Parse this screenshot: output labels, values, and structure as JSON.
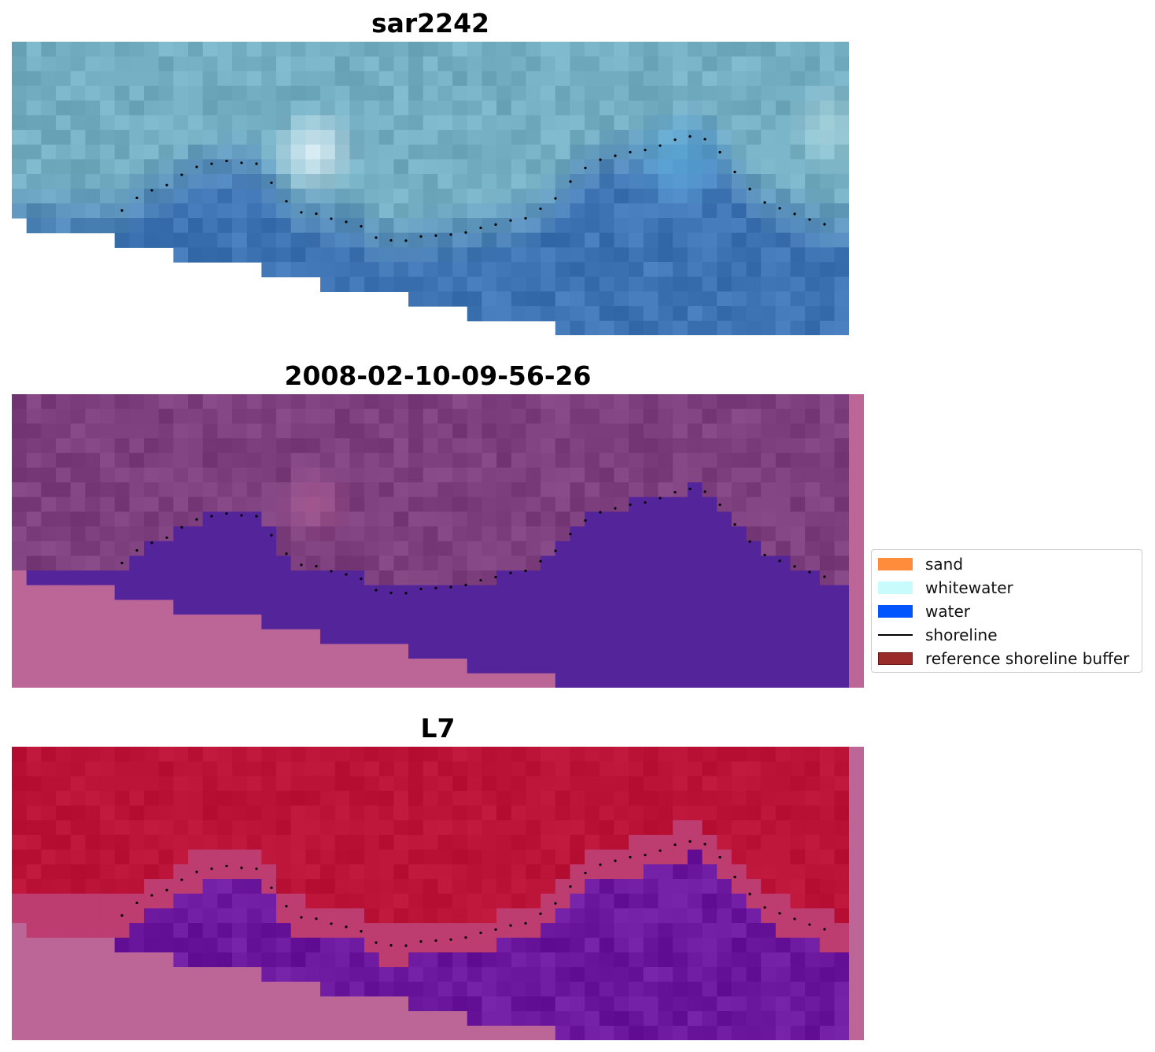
{
  "panels": [
    {
      "key": "sar",
      "title": "sar2242"
    },
    {
      "key": "date",
      "title": "2008-02-10-09-56-26"
    },
    {
      "key": "l7",
      "title": "L7"
    }
  ],
  "legend": {
    "items": [
      {
        "label": "sand",
        "color": "#ff8c3a",
        "type": "patch"
      },
      {
        "label": "whitewater",
        "color": "#c8fbfb",
        "type": "patch"
      },
      {
        "label": "water",
        "color": "#0055ff",
        "type": "patch"
      },
      {
        "label": "shoreline",
        "color": "#000000",
        "type": "line"
      },
      {
        "label": "reference shoreline buffer",
        "color": "#9a2b2b",
        "type": "patch"
      }
    ]
  },
  "colors": {
    "sar_water": "#3f74b4",
    "sar_land": "#74aec2",
    "sar_whitewater": "#e8f6fb",
    "date_land": "#7e3f7e",
    "date_water": "#54249a",
    "date_nodata": "#bb6696",
    "l7_land": "#bb1238",
    "l7_water": "#6c189e",
    "l7_nodata": "#bb6696",
    "shoreline_dots": "#000000"
  }
}
